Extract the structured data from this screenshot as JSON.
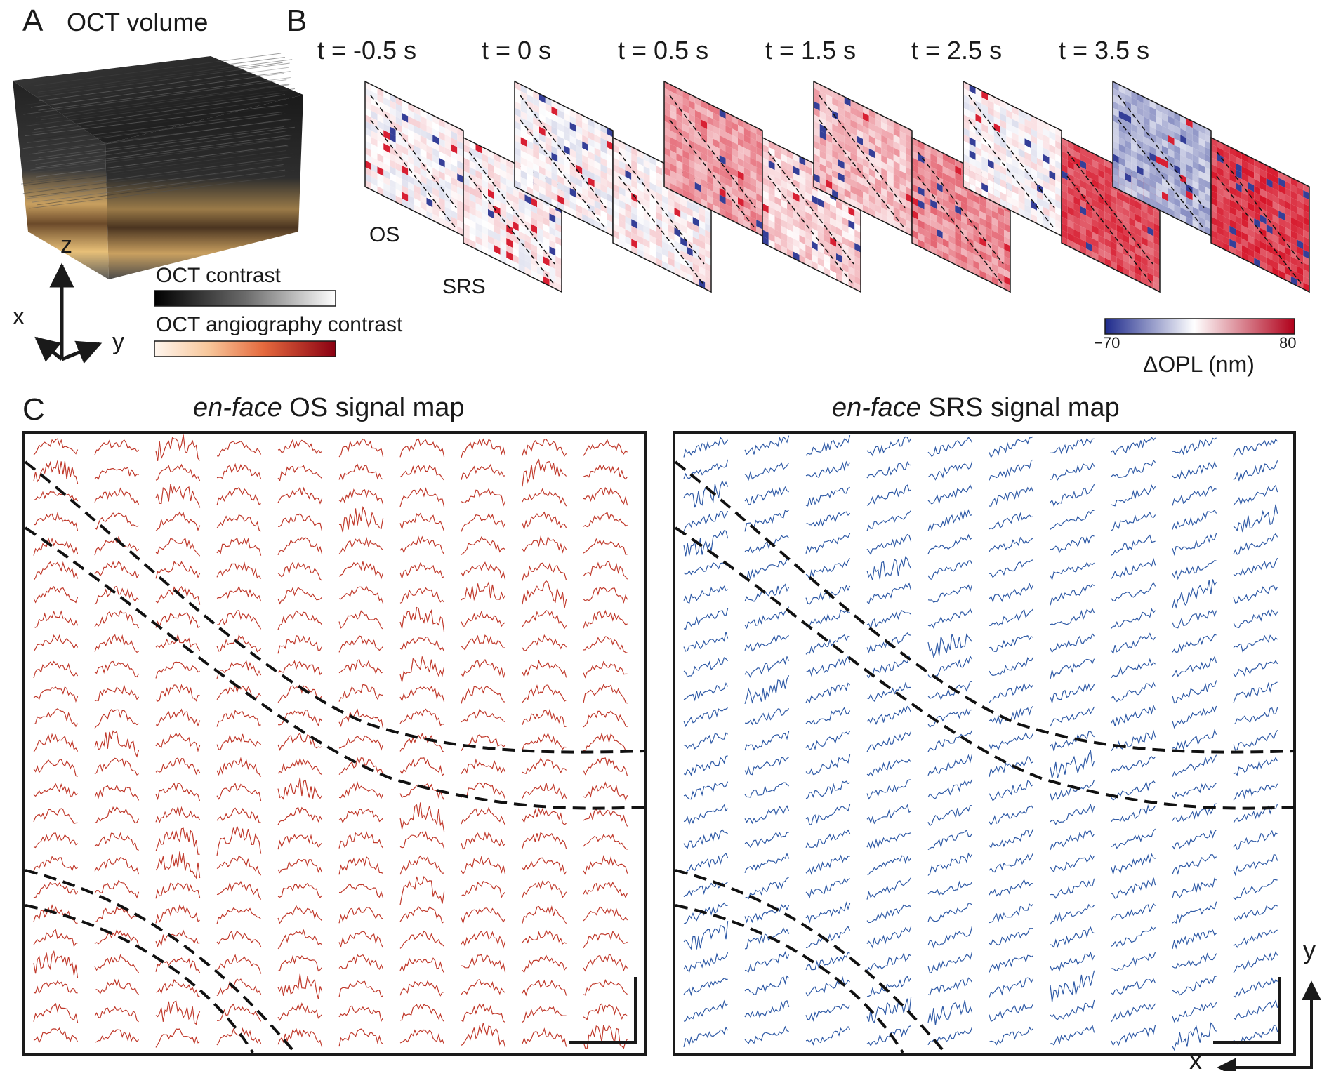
{
  "panel_a": {
    "letter": "A",
    "title": "OCT volume",
    "axis_z": "z",
    "axis_x": "x",
    "axis_y": "y",
    "legend_oct_label": "OCT contrast",
    "legend_angio_label": "OCT angiography contrast"
  },
  "panel_b": {
    "letter": "B",
    "times": [
      "t = -0.5 s",
      "t = 0 s",
      "t = 0.5 s",
      "t = 1.5 s",
      "t = 2.5 s",
      "t = 3.5 s"
    ],
    "os_label": "OS",
    "srs_label": "SRS",
    "os_mean_change": [
      0.02,
      0.0,
      0.42,
      0.28,
      0.02,
      -0.35
    ],
    "srs_mean_change": [
      0.05,
      0.05,
      0.18,
      0.48,
      0.75,
      0.82
    ],
    "colorbar_min": "−70",
    "colorbar_max": "80",
    "colorbar_label": "ΔOPL (nm)",
    "colorbar_colors": [
      "#1e2a8c",
      "#ffffff",
      "#b0001a"
    ]
  },
  "panel_c": {
    "letter": "C",
    "os_title_italic": "en-face",
    "os_title_rest": " OS signal map",
    "srs_title_italic": "en-face",
    "srs_title_rest": " SRS signal map",
    "grid_columns": 10,
    "grid_rows": 25,
    "os_trace_color": "#c0392b",
    "srs_trace_color": "#2f5aa6",
    "axis_x": "x",
    "axis_y": "y"
  }
}
